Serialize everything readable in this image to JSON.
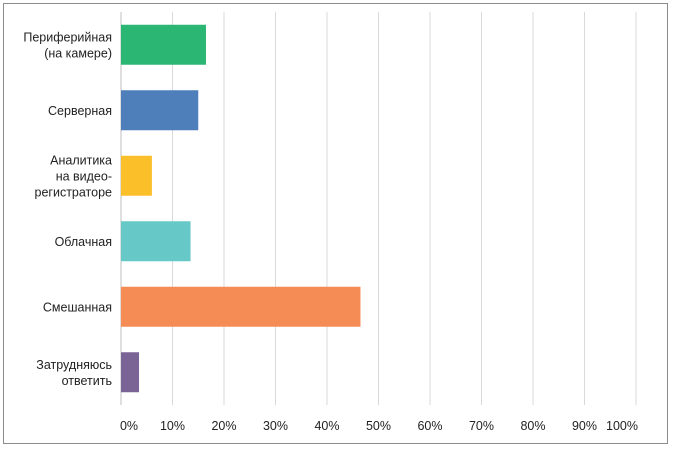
{
  "chart_data": {
    "type": "bar",
    "orientation": "horizontal",
    "categories": [
      [
        "Периферийная",
        "(на камере)"
      ],
      [
        "Серверная"
      ],
      [
        "Аналитика",
        "на видео-",
        "регистраторе"
      ],
      [
        "Облачная"
      ],
      [
        "Смешанная"
      ],
      [
        "Затрудняюсь",
        "ответить"
      ]
    ],
    "values": [
      16.5,
      15,
      6,
      13.5,
      46.5,
      3.5
    ],
    "colors": [
      "#2bb673",
      "#4f7fba",
      "#fbbf2a",
      "#66c9c7",
      "#f68c55",
      "#7a6495"
    ],
    "xlim": [
      0,
      100
    ],
    "x_ticks": [
      "0%",
      "10%",
      "20%",
      "30%",
      "40%",
      "50%",
      "60%",
      "70%",
      "80%",
      "90%",
      "100%"
    ],
    "grid": "vertical",
    "gridColor": "#d9d9d9",
    "title": "",
    "xlabel": "",
    "ylabel": ""
  }
}
